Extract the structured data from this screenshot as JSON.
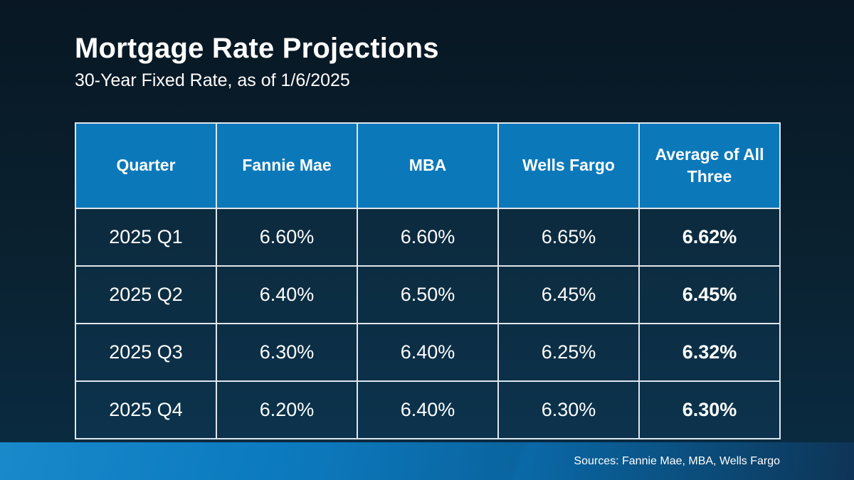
{
  "slide": {
    "title": "Mortgage Rate Projections",
    "subtitle": "30-Year Fixed Rate, as of 1/6/2025",
    "source_note": "Sources: Fannie Mae, MBA, Wells Fargo"
  },
  "chart_data": {
    "type": "table",
    "title": "Mortgage Rate Projections",
    "subtitle": "30-Year Fixed Rate, as of 1/6/2025",
    "columns": [
      "Quarter",
      "Fannie Mae",
      "MBA",
      "Wells Fargo",
      "Average of All Three"
    ],
    "rows": [
      [
        "2025 Q1",
        "6.60%",
        "6.60%",
        "6.65%",
        "6.62%"
      ],
      [
        "2025 Q2",
        "6.40%",
        "6.50%",
        "6.45%",
        "6.45%"
      ],
      [
        "2025 Q3",
        "6.30%",
        "6.40%",
        "6.25%",
        "6.32%"
      ],
      [
        "2025 Q4",
        "6.20%",
        "6.40%",
        "6.30%",
        "6.30%"
      ]
    ],
    "notes": "Last column (Average of All Three) rendered bold; values are 30-year fixed mortgage rate projections by quarter"
  },
  "colors": {
    "background_top": "#081723",
    "background_bottom": "#0a2c44",
    "header_blue": "#0b78ba",
    "footer_gradient_left": "#0d83c8",
    "footer_gradient_right": "#0e3456",
    "table_border": "#dee7ee",
    "text": "#ffffff"
  }
}
